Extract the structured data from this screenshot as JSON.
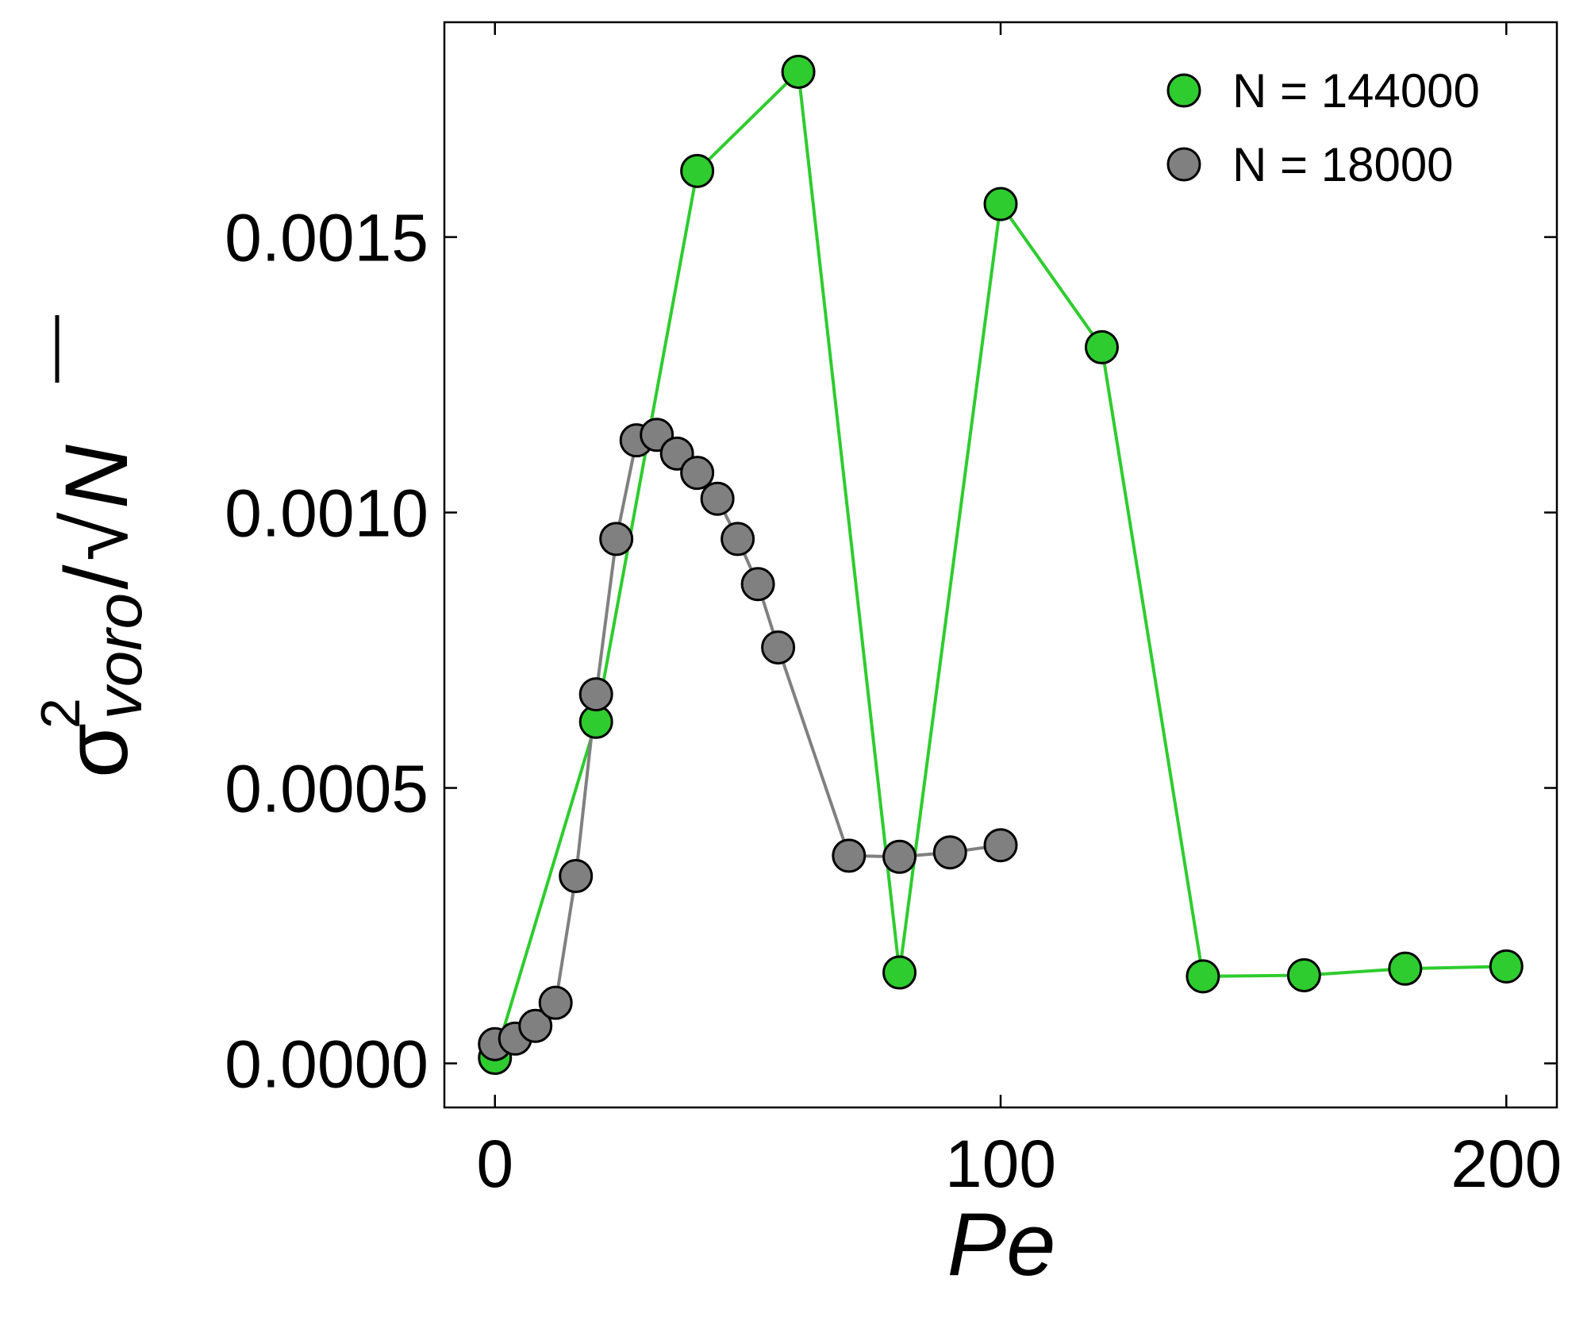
{
  "chart_data": {
    "type": "line",
    "xlabel": "Pe",
    "ylabel": {
      "symbol": "σ",
      "superscript": "2",
      "subscript": "voro",
      "divider": "/",
      "sqrt_glyph": "√",
      "sqrt_arg": "N"
    },
    "xlim": [
      -10,
      210
    ],
    "ylim": [
      -8e-05,
      0.00189
    ],
    "xticks": [
      0,
      100,
      200
    ],
    "xtick_labels": [
      "0",
      "100",
      "200"
    ],
    "yticks": [
      0.0,
      0.0005,
      0.001,
      0.0015
    ],
    "ytick_labels": [
      "0.0000",
      "0.0005",
      "0.0010",
      "0.0015"
    ],
    "grid": false,
    "legend_position": "top-right",
    "series": [
      {
        "name": "N = 144000",
        "color": "#2ecc2e",
        "x": [
          0,
          20,
          40,
          60,
          80,
          100,
          120,
          140,
          160,
          180,
          200
        ],
        "y": [
          1e-05,
          0.00062,
          0.00162,
          0.0018,
          0.000165,
          0.00156,
          0.0013,
          0.000158,
          0.00016,
          0.000172,
          0.000176
        ]
      },
      {
        "name": "N = 18000",
        "color": "#808080",
        "x": [
          0,
          4,
          8,
          12,
          16,
          20,
          24,
          28,
          32,
          36,
          40,
          44,
          48,
          52,
          56,
          70,
          80,
          90,
          100
        ],
        "y": [
          3.5e-05,
          4.5e-05,
          6.8e-05,
          0.00011,
          0.00034,
          0.00067,
          0.000952,
          0.001131,
          0.001141,
          0.001107,
          0.001072,
          0.001025,
          0.000952,
          0.00087,
          0.000755,
          0.000377,
          0.000375,
          0.000383,
          0.000396
        ]
      }
    ]
  }
}
